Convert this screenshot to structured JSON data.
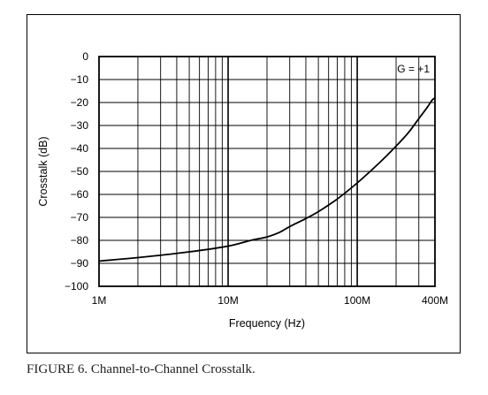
{
  "caption": "FIGURE 6. Channel-to-Channel Crosstalk.",
  "chart_data": {
    "type": "line",
    "xscale": "log",
    "xlim": [
      1000000,
      400000000
    ],
    "ylim": [
      -100,
      0
    ],
    "xlabel": "Frequency (Hz)",
    "ylabel": "Crosstalk (dB)",
    "annotation": "G = +1",
    "grid": true,
    "x_tick_labels": [
      {
        "value": 1000000,
        "label": "1M"
      },
      {
        "value": 10000000,
        "label": "10M"
      },
      {
        "value": 100000000,
        "label": "100M"
      },
      {
        "value": 400000000,
        "label": "400M"
      }
    ],
    "y_ticks": [
      0,
      -10,
      -20,
      -30,
      -40,
      -50,
      -60,
      -70,
      -80,
      -90,
      -100
    ],
    "y_tick_labels": [
      "0",
      "−10",
      "−20",
      "−30",
      "−40",
      "−50",
      "−60",
      "−70",
      "−80",
      "−90",
      "−100"
    ],
    "series": [
      {
        "x": [
          1000000,
          2000000,
          5000000,
          10000000,
          15000000,
          20000000,
          25000000,
          30000000,
          40000000,
          50000000,
          70000000,
          100000000,
          150000000,
          200000000,
          250000000,
          300000000,
          350000000,
          380000000,
          400000000
        ],
        "y": [
          -89,
          -87.5,
          -85,
          -82.5,
          -80,
          -78.5,
          -76.5,
          -74,
          -70.5,
          -67.5,
          -62,
          -55,
          -46,
          -39,
          -33,
          -27,
          -22,
          -19,
          -18
        ]
      }
    ]
  }
}
